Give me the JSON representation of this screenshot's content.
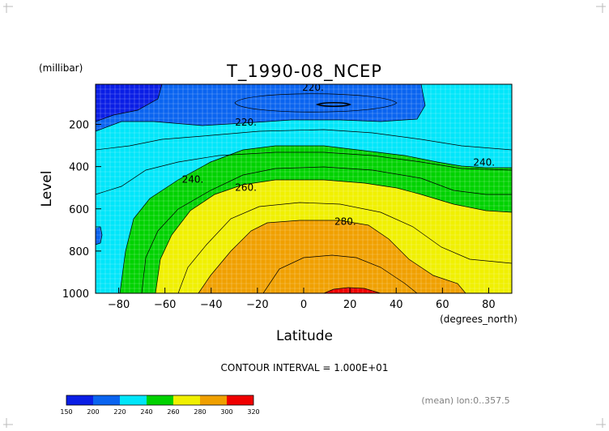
{
  "chart_data": {
    "type": "contour",
    "title": "T_1990-08_NCEP",
    "xlabel": "Latitude",
    "xunits": "(degrees_north)",
    "ylabel": "Level",
    "yunits": "(millibar)",
    "xlim": [
      -90,
      90
    ],
    "ylim": [
      1000,
      10
    ],
    "y_reversed": true,
    "xticks": [
      -80,
      -60,
      -40,
      -20,
      0,
      20,
      40,
      60,
      80
    ],
    "yticks": [
      1000,
      800,
      600,
      400,
      200
    ],
    "grid": true,
    "contour_interval_label": "CONTOUR INTERVAL = 1.000E+01",
    "footer_note": "(mean) lon:0..357.5",
    "contour_labels": [
      {
        "text": "220.",
        "x": 4,
        "y": 25
      },
      {
        "text": "220.",
        "x": -25,
        "y": 190
      },
      {
        "text": "240.",
        "x": -48,
        "y": 460
      },
      {
        "text": "240.",
        "x": 78,
        "y": 380
      },
      {
        "text": "260.",
        "x": -25,
        "y": 500
      },
      {
        "text": "280.",
        "x": 18,
        "y": 660
      }
    ],
    "legend": {
      "levels": [
        150,
        200,
        220,
        240,
        260,
        280,
        300,
        320
      ],
      "level_labels": [
        "150",
        "200",
        "220",
        "240",
        "260",
        "280",
        "300",
        "320"
      ],
      "colors": [
        "#0a1ee6",
        "#0a64f0",
        "#00e6fa",
        "#00d200",
        "#f0f000",
        "#f0a000",
        "#f00000"
      ]
    },
    "band_colors": {
      "lt200": "#0a1ee6",
      "b200_220": "#0a64f0",
      "b220_240": "#00e6fa",
      "b240_260": "#00d200",
      "b260_280": "#f0f000",
      "b280_300": "#f0a000",
      "gt300": "#f00000"
    }
  }
}
